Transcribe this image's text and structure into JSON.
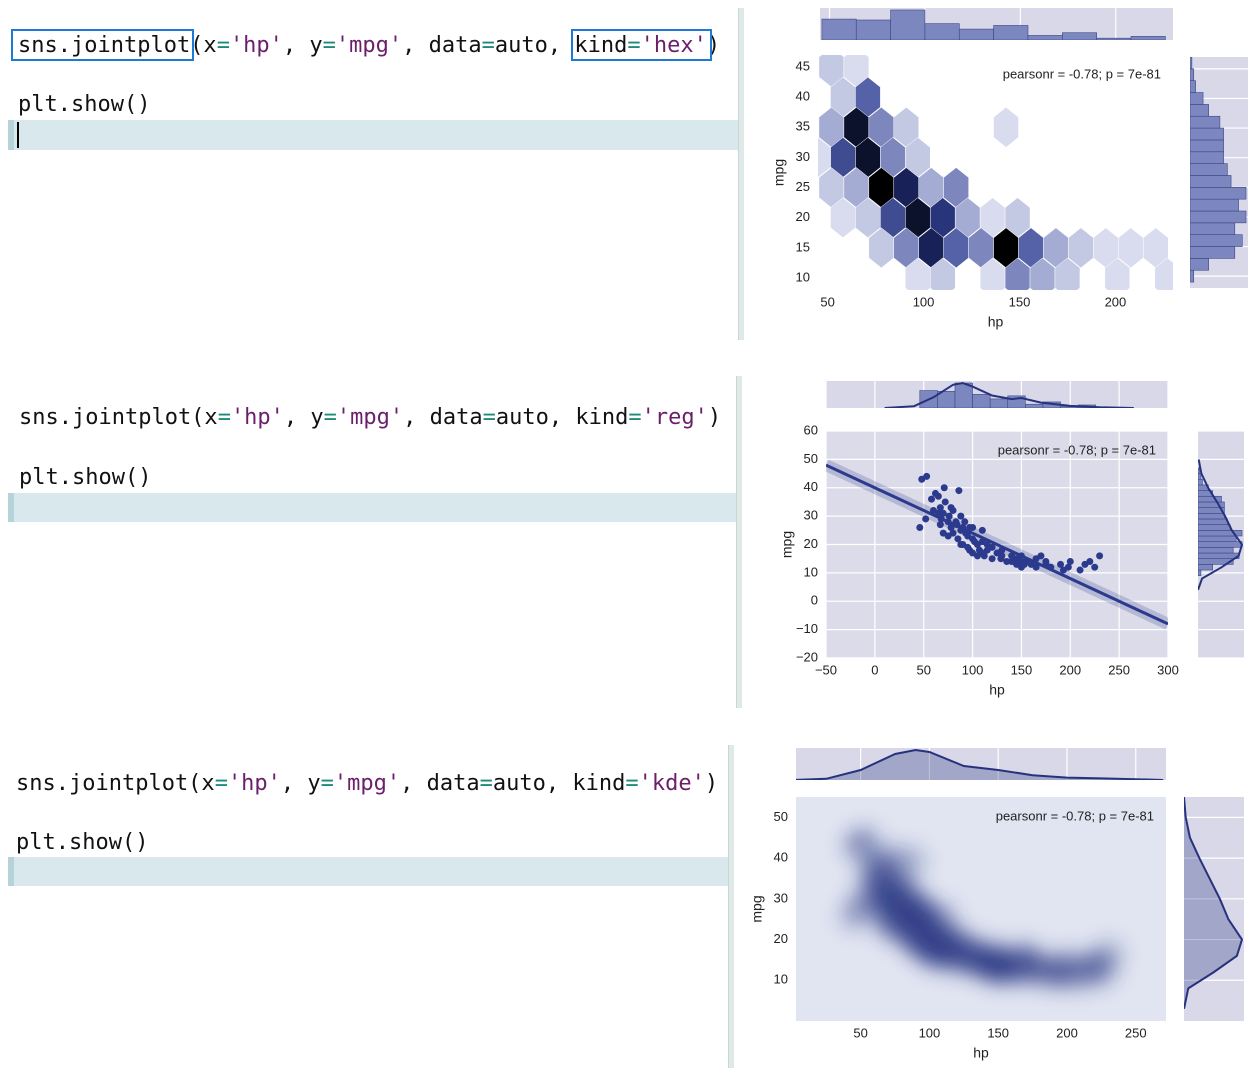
{
  "cells": [
    {
      "lines": [
        "sns.jointplot(x='hp', y='mpg', data=auto, kind='hex')",
        "plt.show()"
      ]
    },
    {
      "lines": [
        "sns.jointplot(x='hp', y='mpg', data=auto, kind='reg')",
        "plt.show()"
      ]
    },
    {
      "lines": [
        "sns.jointplot(x='hp', y='mpg', data=auto, kind='kde')",
        "plt.show()"
      ]
    }
  ],
  "chart_data": [
    {
      "type": "hexbin",
      "annotation": "pearsonr = -0.78; p = 7e-81",
      "xlabel": "hp",
      "ylabel": "mpg",
      "xlim": [
        45,
        230
      ],
      "ylim": [
        8,
        47
      ],
      "xticks": [
        50,
        100,
        150,
        200
      ],
      "yticks": [
        10,
        15,
        20,
        25,
        30,
        35,
        40,
        45
      ],
      "grid": false,
      "x": [
        52,
        65,
        58,
        71,
        52,
        65,
        78,
        91,
        143,
        58,
        71,
        84,
        97,
        45,
        52,
        65,
        78,
        91,
        104,
        117,
        58,
        71,
        84,
        97,
        110,
        123,
        136,
        149,
        78,
        91,
        104,
        117,
        130,
        143,
        156,
        169,
        182,
        195,
        208,
        221,
        97,
        110,
        136,
        149,
        162,
        175,
        201,
        227
      ],
      "y": [
        45,
        45,
        40,
        40,
        35,
        35,
        35,
        35,
        35,
        30,
        30,
        30,
        30,
        30,
        25,
        25,
        25,
        25,
        25,
        25,
        20,
        20,
        20,
        20,
        20,
        20,
        20,
        20,
        15,
        15,
        15,
        15,
        15,
        15,
        15,
        15,
        15,
        15,
        15,
        15,
        10,
        10,
        10,
        10,
        10,
        10,
        10,
        10
      ],
      "counts": [
        2,
        1,
        2,
        5,
        3,
        9,
        4,
        2,
        1,
        6,
        9,
        4,
        2,
        1,
        2,
        3,
        10,
        8,
        3,
        4,
        1,
        2,
        6,
        9,
        7,
        3,
        1,
        2,
        2,
        4,
        8,
        5,
        4,
        10,
        5,
        3,
        2,
        1,
        1,
        1,
        1,
        2,
        1,
        4,
        3,
        2,
        1,
        1
      ],
      "marginal_x": {
        "bins": [
          46,
          64,
          82,
          100,
          118,
          136,
          154,
          172,
          190,
          208,
          226
        ],
        "counts": [
          23,
          22,
          33,
          18,
          12,
          16,
          5,
          8,
          2,
          4
        ]
      },
      "marginal_y": {
        "bins": [
          9,
          11,
          13,
          15,
          17,
          19,
          21,
          23,
          25,
          27,
          29,
          31,
          33,
          35,
          37,
          39,
          41,
          43,
          45,
          47
        ],
        "counts": [
          2,
          10,
          24,
          28,
          24,
          30,
          26,
          30,
          22,
          20,
          18,
          18,
          18,
          16,
          10,
          7,
          3,
          2,
          1
        ]
      }
    },
    {
      "type": "reg",
      "annotation": "pearsonr = -0.78; p = 7e-81",
      "xlabel": "hp",
      "ylabel": "mpg",
      "color": "#2b3a8c",
      "xlim": [
        -50,
        300
      ],
      "ylim": [
        -20,
        60
      ],
      "xticks": [
        {
          "value": -50,
          "label": "−50"
        },
        0,
        50,
        100,
        150,
        200,
        250,
        300
      ],
      "yticks": [
        {
          "value": -20,
          "label": "−20"
        },
        {
          "value": -10,
          "label": "−10"
        },
        0,
        10,
        20,
        30,
        40,
        50,
        60
      ],
      "grid": true,
      "x": [
        46,
        48,
        52,
        53,
        58,
        60,
        62,
        65,
        65,
        67,
        67,
        68,
        70,
        70,
        71,
        72,
        75,
        75,
        76,
        78,
        78,
        80,
        80,
        83,
        84,
        85,
        86,
        88,
        88,
        88,
        90,
        90,
        92,
        93,
        95,
        95,
        97,
        97,
        100,
        100,
        100,
        102,
        105,
        105,
        107,
        110,
        110,
        110,
        112,
        115,
        115,
        120,
        120,
        125,
        129,
        130,
        130,
        135,
        140,
        140,
        145,
        145,
        150,
        150,
        150,
        153,
        155,
        160,
        165,
        165,
        170,
        175,
        175,
        180,
        190,
        193,
        198,
        200,
        210,
        215,
        220,
        225,
        230
      ],
      "y": [
        26,
        43,
        29,
        44,
        36,
        32,
        38,
        31,
        37,
        33,
        27,
        29,
        31,
        24,
        40,
        35,
        28,
        23,
        30,
        33,
        26,
        32,
        24,
        28,
        27,
        22,
        39,
        25,
        20,
        30,
        26,
        20,
        28,
        24,
        23,
        19,
        18,
        26,
        17,
        22,
        26,
        21,
        20,
        16,
        18,
        21,
        17,
        25,
        16,
        18,
        20,
        19,
        15,
        17,
        15,
        16,
        18,
        14,
        14,
        16,
        13,
        15,
        14,
        16,
        12,
        13,
        14,
        13,
        12,
        15,
        16,
        13,
        14,
        12,
        13,
        11,
        12,
        14,
        11,
        13,
        14,
        12,
        16
      ],
      "fit": {
        "x": [
          -50,
          300
        ],
        "y": [
          48,
          -8
        ]
      },
      "marginal_x": {
        "bins": [
          46,
          64,
          82,
          100,
          118,
          136,
          154,
          172,
          190,
          208,
          226
        ],
        "counts": [
          23,
          22,
          33,
          18,
          12,
          16,
          5,
          8,
          2,
          4
        ],
        "curve_x": [
          10,
          40,
          60,
          80,
          90,
          100,
          120,
          140,
          150,
          170,
          200,
          230,
          265
        ],
        "curve_density": [
          0,
          0.5,
          3,
          6.5,
          7,
          6,
          3.5,
          2.5,
          2.8,
          1.5,
          0.6,
          0.2,
          0
        ]
      },
      "marginal_y": {
        "bins": [
          9,
          11,
          13,
          15,
          17,
          19,
          21,
          23,
          25,
          27,
          29,
          31,
          33,
          35,
          37,
          39,
          41,
          43,
          45,
          47
        ],
        "counts": [
          2,
          10,
          24,
          28,
          24,
          30,
          26,
          30,
          22,
          20,
          18,
          18,
          18,
          16,
          10,
          7,
          3,
          2,
          1
        ],
        "curve_y": [
          4,
          8,
          12,
          16,
          20,
          25,
          30,
          35,
          40,
          45,
          50
        ],
        "curve_density": [
          0,
          0.6,
          3.5,
          6,
          6.5,
          5,
          4,
          2.8,
          1.5,
          0.5,
          0.1
        ]
      }
    },
    {
      "type": "kde",
      "annotation": "pearsonr = -0.78; p = 7e-81",
      "xlabel": "hp",
      "ylabel": "mpg",
      "color": "#283580",
      "xlim": [
        3,
        272
      ],
      "ylim": [
        0,
        55
      ],
      "xticks": [
        50,
        100,
        150,
        200,
        250
      ],
      "yticks": [
        10,
        20,
        30,
        40,
        50
      ],
      "grid": false,
      "x": [
        46,
        48,
        52,
        53,
        58,
        60,
        62,
        65,
        65,
        67,
        67,
        68,
        70,
        70,
        71,
        72,
        75,
        75,
        76,
        78,
        78,
        80,
        80,
        83,
        84,
        85,
        86,
        88,
        88,
        88,
        90,
        90,
        92,
        93,
        95,
        95,
        97,
        97,
        100,
        100,
        100,
        102,
        105,
        105,
        107,
        110,
        110,
        110,
        112,
        115,
        115,
        120,
        120,
        125,
        129,
        130,
        130,
        135,
        140,
        140,
        145,
        145,
        150,
        150,
        150,
        153,
        155,
        160,
        165,
        165,
        170,
        175,
        175,
        180,
        190,
        193,
        198,
        200,
        210,
        215,
        220,
        225,
        230
      ],
      "y": [
        26,
        43,
        29,
        44,
        36,
        32,
        38,
        31,
        37,
        33,
        27,
        29,
        31,
        24,
        40,
        35,
        28,
        23,
        30,
        33,
        26,
        32,
        24,
        28,
        27,
        22,
        39,
        25,
        20,
        30,
        26,
        20,
        28,
        24,
        23,
        19,
        18,
        26,
        17,
        22,
        26,
        21,
        20,
        16,
        18,
        21,
        17,
        25,
        16,
        18,
        20,
        19,
        15,
        17,
        15,
        16,
        18,
        14,
        14,
        16,
        13,
        15,
        14,
        16,
        12,
        13,
        14,
        13,
        12,
        15,
        16,
        13,
        14,
        12,
        13,
        11,
        12,
        14,
        11,
        13,
        14,
        12,
        16
      ],
      "marginal_x": {
        "x": [
          0,
          25,
          50,
          75,
          90,
          100,
          125,
          150,
          175,
          200,
          225,
          250,
          270
        ],
        "density": [
          0,
          0.3,
          2.5,
          6.5,
          7.5,
          7,
          3.5,
          2.5,
          1.2,
          0.6,
          0.4,
          0.2,
          0
        ]
      },
      "marginal_y": {
        "y": [
          3,
          8,
          12,
          16,
          20,
          25,
          30,
          35,
          40,
          45,
          50,
          55
        ],
        "density": [
          0,
          0.5,
          3.5,
          6.2,
          6.8,
          5.2,
          4.2,
          3,
          1.8,
          0.7,
          0.2,
          0
        ]
      }
    }
  ]
}
